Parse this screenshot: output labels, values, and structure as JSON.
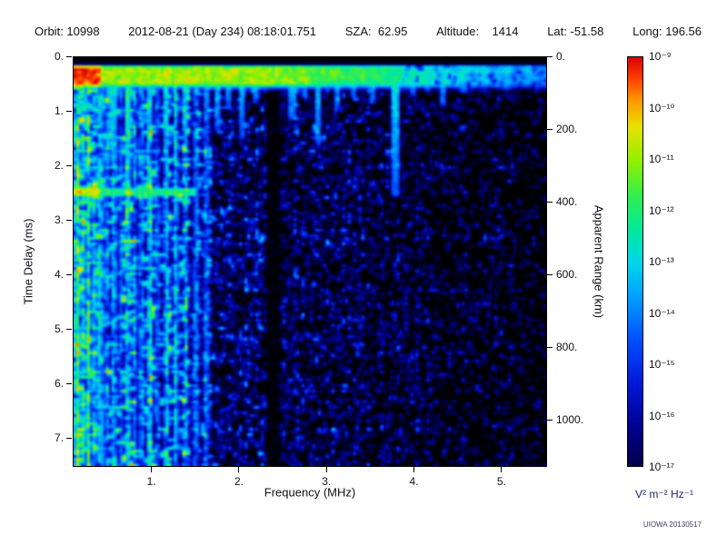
{
  "header": {
    "orbit": "Orbit: 10998",
    "datetime": "2012-08-21 (Day 234) 08:18:01.751",
    "sza": "SZA:  62.95",
    "altitude": "Altitude:    1414",
    "lat": "Lat: -51.58",
    "long": "Long: 196.56"
  },
  "watermark": "UIOWA 20130517",
  "chart_data": {
    "type": "heatmap",
    "description": "Radar sounder ionogram: received spectral density versus sounding frequency and echo time delay. Bright horizontal surface/local-plasma band near zero delay, dense electron plasma oscillation harmonic stripes below ~1.65 MHz, diffuse blue noise speckle elsewhere, dark interference gap near 2.3-2.45 MHz, horizontal electron cyclotron echo line near 2.47 ms at low frequency.",
    "axes": {
      "x": {
        "label": "Frequency (MHz)",
        "min": 0.1,
        "max": 5.5,
        "ticks": [
          {
            "value": 1,
            "label": "1."
          },
          {
            "value": 2,
            "label": "2."
          },
          {
            "value": 3,
            "label": "3."
          },
          {
            "value": 4,
            "label": "4."
          },
          {
            "value": 5,
            "label": "5."
          }
        ]
      },
      "y": {
        "label": "Time Delay (ms)",
        "min": 0,
        "max": 7.5,
        "ticks": [
          {
            "value": 0,
            "label": "0."
          },
          {
            "value": 1,
            "label": "1."
          },
          {
            "value": 2,
            "label": "2."
          },
          {
            "value": 3,
            "label": "3."
          },
          {
            "value": 4,
            "label": "4."
          },
          {
            "value": 5,
            "label": "5."
          },
          {
            "value": 6,
            "label": "6."
          },
          {
            "value": 7,
            "label": "7."
          }
        ]
      },
      "y_right": {
        "label": "Apparent Range (km)",
        "min": 0,
        "max": 1124,
        "ticks": [
          {
            "value": 0,
            "label": "0."
          },
          {
            "value": 200,
            "label": "200."
          },
          {
            "value": 400,
            "label": "400."
          },
          {
            "value": 600,
            "label": "600."
          },
          {
            "value": 800,
            "label": "800."
          },
          {
            "value": 1000,
            "label": "1000."
          }
        ]
      }
    },
    "colorbar": {
      "scale": "log",
      "units": "V² m⁻² Hz⁻¹",
      "max_exponent": -9,
      "min_exponent": -17,
      "tick_labels": [
        "10⁻⁹",
        "10⁻¹⁰",
        "10⁻¹¹",
        "10⁻¹²",
        "10⁻¹³",
        "10⁻¹⁴",
        "10⁻¹⁵",
        "10⁻¹⁶",
        "10⁻¹⁷"
      ]
    },
    "colormap": [
      [
        0.0,
        "#000000"
      ],
      [
        0.06,
        "#00004a"
      ],
      [
        0.15,
        "#000090"
      ],
      [
        0.25,
        "#0018d8"
      ],
      [
        0.35,
        "#0050ff"
      ],
      [
        0.45,
        "#00a0ff"
      ],
      [
        0.53,
        "#00d8e8"
      ],
      [
        0.6,
        "#00e8a0"
      ],
      [
        0.68,
        "#30ee50"
      ],
      [
        0.76,
        "#90f000"
      ],
      [
        0.84,
        "#e8e000"
      ],
      [
        0.9,
        "#ff9800"
      ],
      [
        0.95,
        "#ff4000"
      ],
      [
        1.0,
        "#d80000"
      ]
    ],
    "features": {
      "seed": 1234,
      "surface_band": {
        "t_start": 0.17,
        "t_end": 0.5,
        "strength": 0.82
      },
      "plasma_stripes": [
        [
          0.14,
          0.95
        ],
        [
          0.2,
          0.7
        ],
        [
          0.27,
          0.9
        ],
        [
          0.34,
          0.6
        ],
        [
          0.41,
          0.8
        ],
        [
          0.48,
          0.65
        ],
        [
          0.56,
          0.8
        ],
        [
          0.64,
          0.6
        ],
        [
          0.72,
          0.9
        ],
        [
          0.8,
          0.6
        ],
        [
          0.88,
          0.7
        ],
        [
          0.97,
          0.95
        ],
        [
          1.06,
          0.6
        ],
        [
          1.16,
          0.8
        ],
        [
          1.27,
          0.9
        ],
        [
          1.38,
          0.65
        ],
        [
          1.5,
          0.75
        ],
        [
          1.62,
          0.6
        ]
      ],
      "icicles": [
        [
          0.55,
          1.9
        ],
        [
          0.72,
          2.3
        ],
        [
          0.97,
          1.6
        ],
        [
          1.16,
          2.0
        ],
        [
          1.38,
          1.5
        ],
        [
          1.62,
          1.2
        ],
        [
          1.75,
          1.35
        ],
        [
          1.88,
          0.95
        ],
        [
          2.02,
          1.5
        ],
        [
          2.18,
          0.85
        ],
        [
          2.6,
          1.15
        ],
        [
          2.74,
          0.75
        ],
        [
          2.9,
          1.6
        ],
        [
          3.1,
          0.95
        ],
        [
          3.3,
          0.75
        ],
        [
          3.52,
          0.85
        ],
        [
          3.78,
          2.55
        ],
        [
          3.97,
          0.7
        ],
        [
          4.15,
          0.6
        ],
        [
          4.32,
          0.9
        ],
        [
          4.55,
          0.65
        ],
        [
          4.8,
          0.55
        ],
        [
          5.05,
          0.6
        ],
        [
          5.3,
          0.5
        ]
      ],
      "noise_gap_freq": [
        2.29,
        2.46
      ],
      "cyclotron_line": {
        "t": 2.47,
        "f_max": 1.5
      }
    }
  }
}
